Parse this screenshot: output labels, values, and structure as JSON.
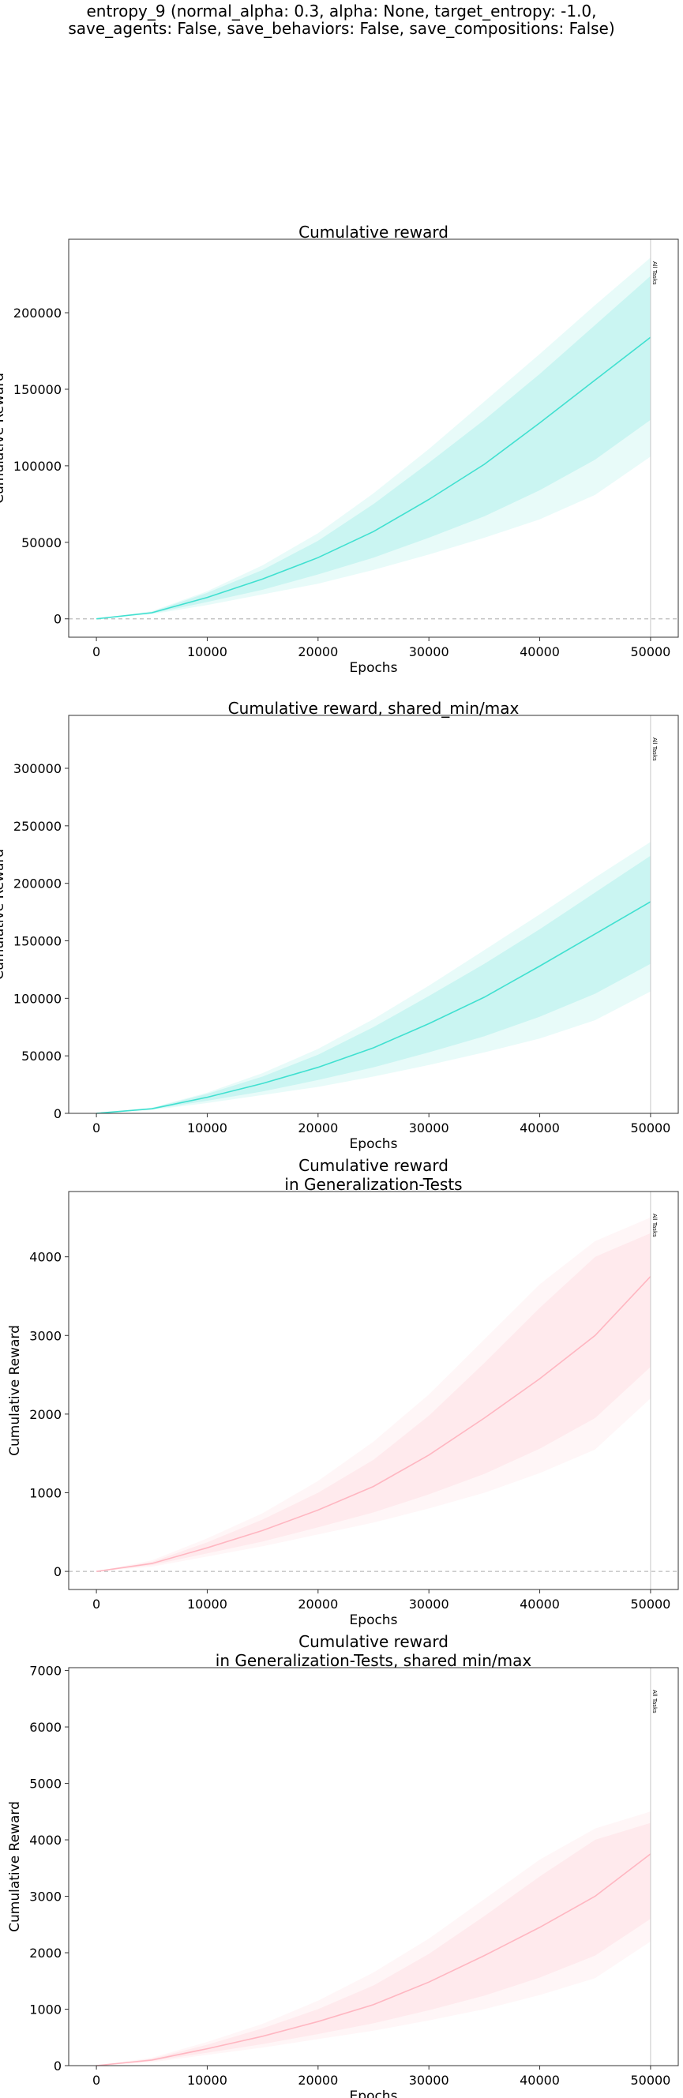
{
  "figure": {
    "title_line1": "entropy_9 (normal_alpha: 0.3, alpha: None, target_entropy: -1.0,",
    "title_line2": "save_agents: False, save_behaviors: False, save_compositions: False)"
  },
  "colors": {
    "train": "#40e0d0",
    "generalization": "#ffb6c1"
  },
  "chart_data": [
    {
      "type": "line",
      "title": [
        "Cumulative reward"
      ],
      "xlabel": "Epochs",
      "ylabel": "Cumulative Reward",
      "xlim": [
        -2500,
        52500
      ],
      "ylim": [
        -12000,
        248000
      ],
      "xticks": [
        0,
        10000,
        20000,
        30000,
        40000,
        50000
      ],
      "yticks": [
        0,
        50000,
        100000,
        150000,
        200000
      ],
      "zero_line": true,
      "vline": {
        "x": 50000,
        "label": "All Tasks"
      },
      "color": "#40e0d0",
      "x": [
        0,
        5000,
        10000,
        15000,
        20000,
        25000,
        30000,
        35000,
        40000,
        45000,
        50000
      ],
      "mean": [
        0,
        4000,
        14000,
        26000,
        40000,
        57000,
        78000,
        101000,
        128000,
        156000,
        184000
      ],
      "std_lower": [
        0,
        3500,
        11000,
        19000,
        29000,
        40000,
        53000,
        67000,
        84000,
        104000,
        130000
      ],
      "std_upper": [
        0,
        4500,
        17000,
        32000,
        51000,
        75000,
        102000,
        130000,
        160000,
        192000,
        224000
      ],
      "min": [
        0,
        3000,
        9000,
        16000,
        23000,
        32000,
        42000,
        53000,
        65000,
        81000,
        106000
      ],
      "max": [
        0,
        5000,
        18000,
        35000,
        56000,
        82000,
        111000,
        142000,
        173000,
        205000,
        236000
      ]
    },
    {
      "type": "line",
      "title": [
        "Cumulative reward, shared_min/max"
      ],
      "xlabel": "Epochs",
      "ylabel": "Cumulative Reward",
      "xlim": [
        -2500,
        52500
      ],
      "ylim": [
        0,
        346000
      ],
      "xticks": [
        0,
        10000,
        20000,
        30000,
        40000,
        50000
      ],
      "yticks": [
        0,
        50000,
        100000,
        150000,
        200000,
        250000,
        300000
      ],
      "zero_line": false,
      "vline": {
        "x": 50000,
        "label": "All Tasks"
      },
      "color": "#40e0d0",
      "x": [
        0,
        5000,
        10000,
        15000,
        20000,
        25000,
        30000,
        35000,
        40000,
        45000,
        50000
      ],
      "mean": [
        0,
        4000,
        14000,
        26000,
        40000,
        57000,
        78000,
        101000,
        128000,
        156000,
        184000
      ],
      "std_lower": [
        0,
        3500,
        11000,
        19000,
        29000,
        40000,
        53000,
        67000,
        84000,
        104000,
        130000
      ],
      "std_upper": [
        0,
        4500,
        17000,
        32000,
        51000,
        75000,
        102000,
        130000,
        160000,
        192000,
        224000
      ],
      "min": [
        0,
        3000,
        9000,
        16000,
        23000,
        32000,
        42000,
        53000,
        65000,
        81000,
        106000
      ],
      "max": [
        0,
        5000,
        18000,
        35000,
        56000,
        82000,
        111000,
        142000,
        173000,
        205000,
        236000
      ]
    },
    {
      "type": "line",
      "title": [
        "Cumulative reward",
        "in Generalization-Tests"
      ],
      "xlabel": "Epochs",
      "ylabel": "Cumulative Reward",
      "xlim": [
        -2500,
        52500
      ],
      "ylim": [
        -230,
        4830
      ],
      "xticks": [
        0,
        10000,
        20000,
        30000,
        40000,
        50000
      ],
      "yticks": [
        0,
        1000,
        2000,
        3000,
        4000
      ],
      "zero_line": true,
      "vline": {
        "x": 50000,
        "label": "All Tasks"
      },
      "color": "#ffb6c1",
      "x": [
        0,
        5000,
        10000,
        15000,
        20000,
        25000,
        30000,
        35000,
        40000,
        45000,
        50000
      ],
      "mean": [
        0,
        100,
        300,
        520,
        780,
        1080,
        1480,
        1950,
        2450,
        3000,
        3750
      ],
      "std_lower": [
        0,
        80,
        230,
        380,
        560,
        750,
        980,
        1240,
        1560,
        1950,
        2600
      ],
      "std_upper": [
        0,
        120,
        370,
        660,
        1000,
        1420,
        1980,
        2650,
        3350,
        4000,
        4300
      ],
      "min": [
        0,
        60,
        190,
        320,
        470,
        620,
        800,
        1000,
        1250,
        1550,
        2200
      ],
      "max": [
        0,
        140,
        420,
        740,
        1150,
        1650,
        2250,
        2950,
        3650,
        4200,
        4500
      ]
    },
    {
      "type": "line",
      "title": [
        "Cumulative reward",
        "in Generalization-Tests, shared min/max"
      ],
      "xlabel": "Epochs",
      "ylabel": "Cumulative Reward",
      "xlim": [
        -2500,
        52500
      ],
      "ylim": [
        0,
        7050
      ],
      "xticks": [
        0,
        10000,
        20000,
        30000,
        40000,
        50000
      ],
      "yticks": [
        0,
        1000,
        2000,
        3000,
        4000,
        5000,
        6000,
        7000
      ],
      "zero_line": false,
      "vline": {
        "x": 50000,
        "label": "All Tasks"
      },
      "color": "#ffb6c1",
      "x": [
        0,
        5000,
        10000,
        15000,
        20000,
        25000,
        30000,
        35000,
        40000,
        45000,
        50000
      ],
      "mean": [
        0,
        100,
        300,
        520,
        780,
        1080,
        1480,
        1950,
        2450,
        3000,
        3750
      ],
      "std_lower": [
        0,
        80,
        230,
        380,
        560,
        750,
        980,
        1240,
        1560,
        1950,
        2600
      ],
      "std_upper": [
        0,
        120,
        370,
        660,
        1000,
        1420,
        1980,
        2650,
        3350,
        4000,
        4300
      ],
      "min": [
        0,
        60,
        190,
        320,
        470,
        620,
        800,
        1000,
        1250,
        1550,
        2200
      ],
      "max": [
        0,
        140,
        420,
        740,
        1150,
        1650,
        2250,
        2950,
        3650,
        4200,
        4500
      ]
    }
  ]
}
